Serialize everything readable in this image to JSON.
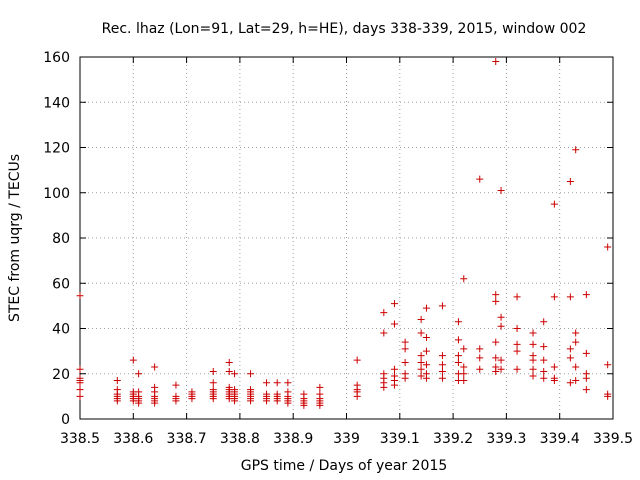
{
  "chart_data": {
    "type": "scatter",
    "title": "Rec. lhaz (Lon=91, Lat=29, h=HE), days 338-339, 2015, window 002",
    "xlabel": "GPS time / Days of year 2015",
    "ylabel": "STEC from uqrg / TECUs",
    "xlim": [
      338.5,
      339.5
    ],
    "ylim": [
      0,
      160
    ],
    "xticks": [
      "338.5",
      "338.6",
      "338.7",
      "338.8",
      "338.9",
      "339",
      "339.1",
      "339.2",
      "339.3",
      "339.4",
      "339.5"
    ],
    "yticks": [
      "0",
      "20",
      "40",
      "60",
      "80",
      "100",
      "120",
      "140",
      "160"
    ],
    "grid": true,
    "marker": "+",
    "marker_color": "#cc0000",
    "points": [
      [
        338.5,
        54.5
      ],
      [
        338.5,
        22
      ],
      [
        338.5,
        18
      ],
      [
        338.5,
        17
      ],
      [
        338.5,
        16
      ],
      [
        338.5,
        13
      ],
      [
        338.5,
        10
      ],
      [
        338.57,
        17
      ],
      [
        338.57,
        13
      ],
      [
        338.57,
        11
      ],
      [
        338.57,
        10
      ],
      [
        338.57,
        9
      ],
      [
        338.57,
        8
      ],
      [
        338.6,
        26
      ],
      [
        338.6,
        12
      ],
      [
        338.6,
        11
      ],
      [
        338.6,
        10
      ],
      [
        338.6,
        9
      ],
      [
        338.6,
        8
      ],
      [
        338.61,
        20
      ],
      [
        338.61,
        12
      ],
      [
        338.61,
        10
      ],
      [
        338.61,
        9
      ],
      [
        338.61,
        8
      ],
      [
        338.61,
        7
      ],
      [
        338.64,
        23
      ],
      [
        338.64,
        14
      ],
      [
        338.64,
        12
      ],
      [
        338.64,
        10
      ],
      [
        338.64,
        9
      ],
      [
        338.64,
        8
      ],
      [
        338.64,
        7
      ],
      [
        338.68,
        15
      ],
      [
        338.68,
        10
      ],
      [
        338.68,
        9
      ],
      [
        338.68,
        8
      ],
      [
        338.71,
        12
      ],
      [
        338.71,
        11
      ],
      [
        338.71,
        10
      ],
      [
        338.71,
        9
      ],
      [
        338.75,
        21
      ],
      [
        338.75,
        16
      ],
      [
        338.75,
        13
      ],
      [
        338.75,
        12
      ],
      [
        338.75,
        11
      ],
      [
        338.75,
        10
      ],
      [
        338.75,
        9
      ],
      [
        338.78,
        25
      ],
      [
        338.78,
        21
      ],
      [
        338.78,
        14
      ],
      [
        338.78,
        13
      ],
      [
        338.78,
        12
      ],
      [
        338.78,
        11
      ],
      [
        338.78,
        10
      ],
      [
        338.78,
        9
      ],
      [
        338.79,
        20
      ],
      [
        338.79,
        13
      ],
      [
        338.79,
        12
      ],
      [
        338.79,
        11
      ],
      [
        338.79,
        10
      ],
      [
        338.79,
        9
      ],
      [
        338.79,
        8
      ],
      [
        338.82,
        20
      ],
      [
        338.82,
        13
      ],
      [
        338.82,
        12
      ],
      [
        338.82,
        11
      ],
      [
        338.82,
        10
      ],
      [
        338.82,
        9
      ],
      [
        338.82,
        8
      ],
      [
        338.85,
        16
      ],
      [
        338.85,
        11
      ],
      [
        338.85,
        10
      ],
      [
        338.85,
        9
      ],
      [
        338.85,
        8
      ],
      [
        338.87,
        16
      ],
      [
        338.87,
        11
      ],
      [
        338.87,
        10
      ],
      [
        338.87,
        9
      ],
      [
        338.87,
        8
      ],
      [
        338.89,
        16
      ],
      [
        338.89,
        12
      ],
      [
        338.89,
        10
      ],
      [
        338.89,
        9
      ],
      [
        338.89,
        8
      ],
      [
        338.89,
        7
      ],
      [
        338.92,
        11
      ],
      [
        338.92,
        9
      ],
      [
        338.92,
        8
      ],
      [
        338.92,
        7
      ],
      [
        338.92,
        6
      ],
      [
        338.95,
        14
      ],
      [
        338.95,
        11
      ],
      [
        338.95,
        9
      ],
      [
        338.95,
        8
      ],
      [
        338.95,
        7
      ],
      [
        338.95,
        6
      ],
      [
        339.02,
        26
      ],
      [
        339.02,
        15
      ],
      [
        339.02,
        13
      ],
      [
        339.02,
        12
      ],
      [
        339.02,
        10
      ],
      [
        339.07,
        47
      ],
      [
        339.07,
        38
      ],
      [
        339.07,
        20
      ],
      [
        339.07,
        18
      ],
      [
        339.07,
        16
      ],
      [
        339.07,
        14
      ],
      [
        339.09,
        51
      ],
      [
        339.09,
        42
      ],
      [
        339.09,
        22
      ],
      [
        339.09,
        19
      ],
      [
        339.09,
        17
      ],
      [
        339.09,
        15
      ],
      [
        339.11,
        34
      ],
      [
        339.11,
        31
      ],
      [
        339.11,
        25
      ],
      [
        339.11,
        20
      ],
      [
        339.11,
        18
      ],
      [
        339.14,
        44
      ],
      [
        339.14,
        38
      ],
      [
        339.14,
        28
      ],
      [
        339.14,
        25
      ],
      [
        339.14,
        22
      ],
      [
        339.14,
        19
      ],
      [
        339.15,
        49
      ],
      [
        339.15,
        36
      ],
      [
        339.15,
        30
      ],
      [
        339.15,
        24
      ],
      [
        339.15,
        20
      ],
      [
        339.15,
        18
      ],
      [
        339.18,
        50
      ],
      [
        339.18,
        28
      ],
      [
        339.18,
        24
      ],
      [
        339.18,
        21
      ],
      [
        339.18,
        18
      ],
      [
        339.21,
        43
      ],
      [
        339.21,
        35
      ],
      [
        339.21,
        28
      ],
      [
        339.21,
        25
      ],
      [
        339.21,
        20
      ],
      [
        339.21,
        17
      ],
      [
        339.22,
        62
      ],
      [
        339.22,
        31
      ],
      [
        339.22,
        23
      ],
      [
        339.22,
        20
      ],
      [
        339.22,
        17
      ],
      [
        339.25,
        106
      ],
      [
        339.25,
        31
      ],
      [
        339.25,
        27
      ],
      [
        339.25,
        22
      ],
      [
        339.28,
        158
      ],
      [
        339.28,
        55
      ],
      [
        339.28,
        52
      ],
      [
        339.28,
        34
      ],
      [
        339.28,
        27
      ],
      [
        339.28,
        23
      ],
      [
        339.28,
        21
      ],
      [
        339.29,
        101
      ],
      [
        339.29,
        45
      ],
      [
        339.29,
        41
      ],
      [
        339.29,
        26
      ],
      [
        339.29,
        22
      ],
      [
        339.32,
        54
      ],
      [
        339.32,
        40
      ],
      [
        339.32,
        33
      ],
      [
        339.32,
        30
      ],
      [
        339.32,
        22
      ],
      [
        339.35,
        38
      ],
      [
        339.35,
        33
      ],
      [
        339.35,
        28
      ],
      [
        339.35,
        26
      ],
      [
        339.35,
        22
      ],
      [
        339.35,
        19
      ],
      [
        339.37,
        43
      ],
      [
        339.37,
        32
      ],
      [
        339.37,
        26
      ],
      [
        339.37,
        21
      ],
      [
        339.37,
        18
      ],
      [
        339.39,
        95
      ],
      [
        339.39,
        54
      ],
      [
        339.39,
        23
      ],
      [
        339.39,
        18
      ],
      [
        339.39,
        17
      ],
      [
        339.42,
        105
      ],
      [
        339.42,
        54
      ],
      [
        339.42,
        31
      ],
      [
        339.42,
        27
      ],
      [
        339.42,
        16
      ],
      [
        339.43,
        119
      ],
      [
        339.43,
        38
      ],
      [
        339.43,
        34
      ],
      [
        339.43,
        23
      ],
      [
        339.43,
        17
      ],
      [
        339.45,
        55
      ],
      [
        339.45,
        29
      ],
      [
        339.45,
        20
      ],
      [
        339.45,
        18
      ],
      [
        339.45,
        13
      ],
      [
        339.49,
        76
      ],
      [
        339.49,
        24
      ],
      [
        339.49,
        11
      ],
      [
        339.49,
        10
      ]
    ]
  }
}
